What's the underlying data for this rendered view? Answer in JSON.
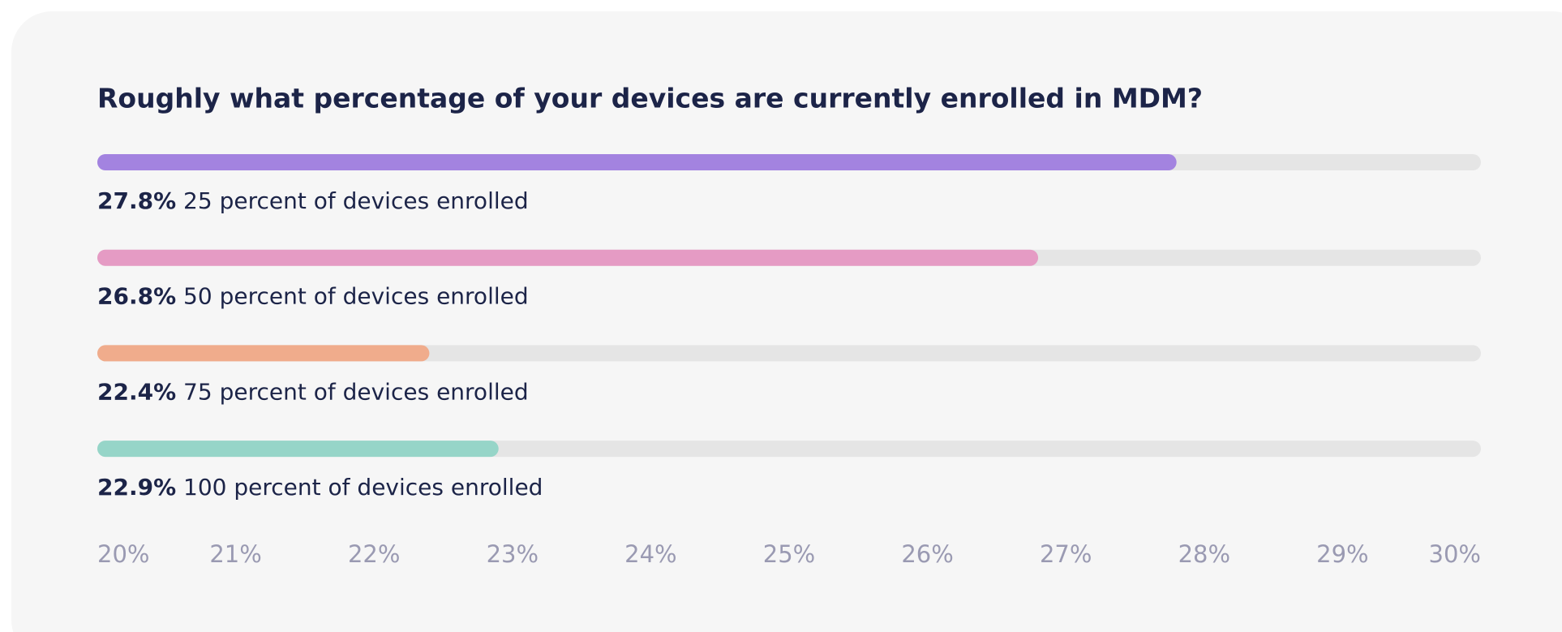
{
  "chart_data": {
    "type": "bar",
    "orientation": "horizontal",
    "title": "Roughly what percentage of your devices are currently enrolled in MDM?",
    "categories": [
      "25 percent of devices enrolled",
      "50 percent of devices enrolled",
      "75 percent of devices enrolled",
      "100 percent of devices enrolled"
    ],
    "values": [
      27.8,
      26.8,
      22.4,
      22.9
    ],
    "value_labels": [
      "27.8%",
      "26.8%",
      "22.4%",
      "22.9%"
    ],
    "colors": [
      "#a383e0",
      "#e59bc4",
      "#f0ac8c",
      "#96d5c8"
    ],
    "xlim": [
      20,
      30
    ],
    "xticks": [
      {
        "value": 20,
        "label": "20%"
      },
      {
        "value": 21,
        "label": "21%"
      },
      {
        "value": 22,
        "label": "22%"
      },
      {
        "value": 23,
        "label": "23%"
      },
      {
        "value": 24,
        "label": "24%"
      },
      {
        "value": 25,
        "label": "25%"
      },
      {
        "value": 26,
        "label": "26%"
      },
      {
        "value": 27,
        "label": "27%"
      },
      {
        "value": 28,
        "label": "28%"
      },
      {
        "value": 29,
        "label": "29%"
      },
      {
        "value": 30,
        "label": "30%"
      }
    ]
  }
}
